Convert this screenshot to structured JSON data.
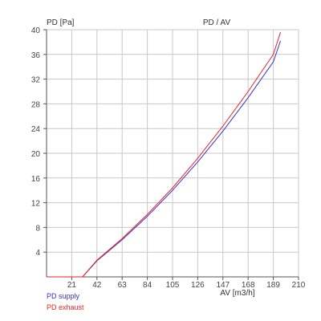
{
  "chart_data": {
    "type": "line",
    "title": "PD / AV",
    "xlabel": "AV [m3/h]",
    "ylabel": "PD [Pa]",
    "xlim": [
      0,
      210
    ],
    "ylim": [
      0,
      40
    ],
    "x_ticks": [
      21,
      42,
      63,
      84,
      105,
      126,
      147,
      168,
      189,
      210
    ],
    "y_ticks": [
      4,
      8,
      12,
      16,
      20,
      24,
      28,
      32,
      36,
      40
    ],
    "grid": true,
    "legend_position": "bottom-left",
    "series": [
      {
        "name": "PD supply",
        "color": "#3333cc",
        "x": [
          0,
          30,
          42,
          63,
          84,
          105,
          126,
          147,
          168,
          189,
          195
        ],
        "y": [
          0,
          0,
          2.6,
          6.0,
          9.8,
          14.0,
          18.6,
          23.6,
          29.0,
          34.8,
          38.2
        ]
      },
      {
        "name": "PD exhaust",
        "color": "#ee2222",
        "x": [
          0,
          30,
          42,
          63,
          84,
          105,
          126,
          147,
          168,
          189,
          195
        ],
        "y": [
          0,
          0,
          2.7,
          6.2,
          10.1,
          14.4,
          19.2,
          24.4,
          30.0,
          36.0,
          39.6
        ]
      }
    ]
  }
}
